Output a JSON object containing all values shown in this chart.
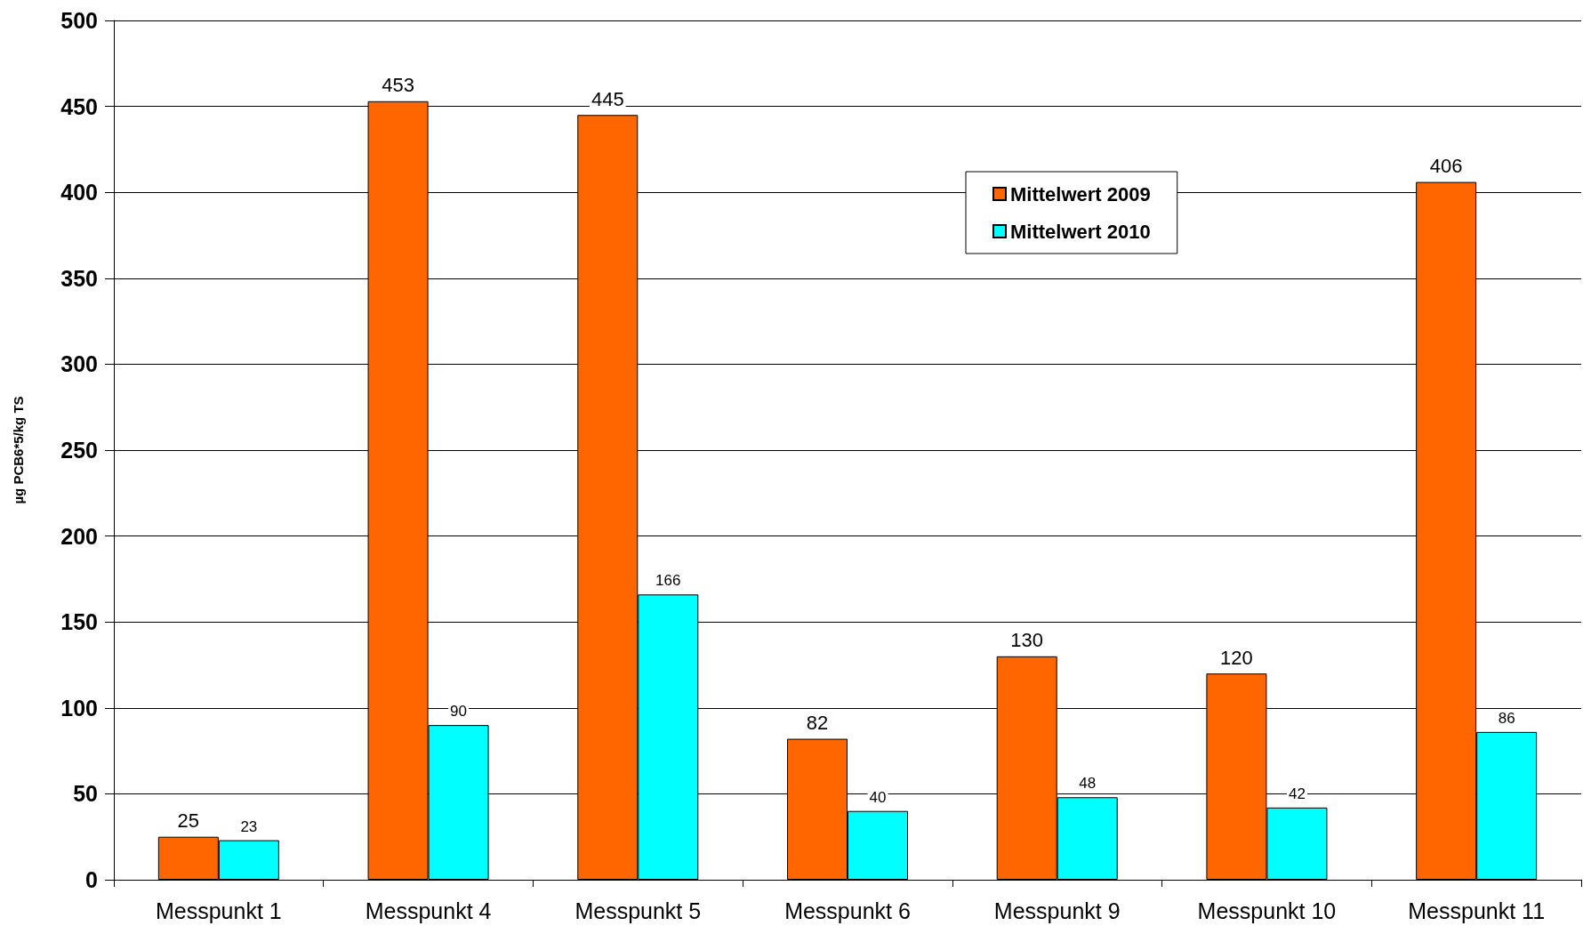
{
  "chart_data": {
    "type": "bar",
    "ylabel": "µg PCB6*5/kg TS",
    "categories": [
      "Messpunkt 1",
      "Messpunkt 4",
      "Messpunkt 5",
      "Messpunkt 6",
      "Messpunkt 9",
      "Messpunkt 10",
      "Messpunkt 11"
    ],
    "series": [
      {
        "name": "Mittelwert 2009",
        "color": "#ff6600",
        "values": [
          25,
          453,
          445,
          82,
          130,
          120,
          406
        ]
      },
      {
        "name": "Mittelwert 2010",
        "color": "#00ffff",
        "values": [
          23,
          90,
          166,
          40,
          48,
          42,
          86
        ]
      }
    ],
    "ylim": [
      0,
      500
    ],
    "yticks": [
      0,
      50,
      100,
      150,
      200,
      250,
      300,
      350,
      400,
      450,
      500
    ],
    "grid": "y",
    "legend": "top right",
    "data_labels": true
  }
}
